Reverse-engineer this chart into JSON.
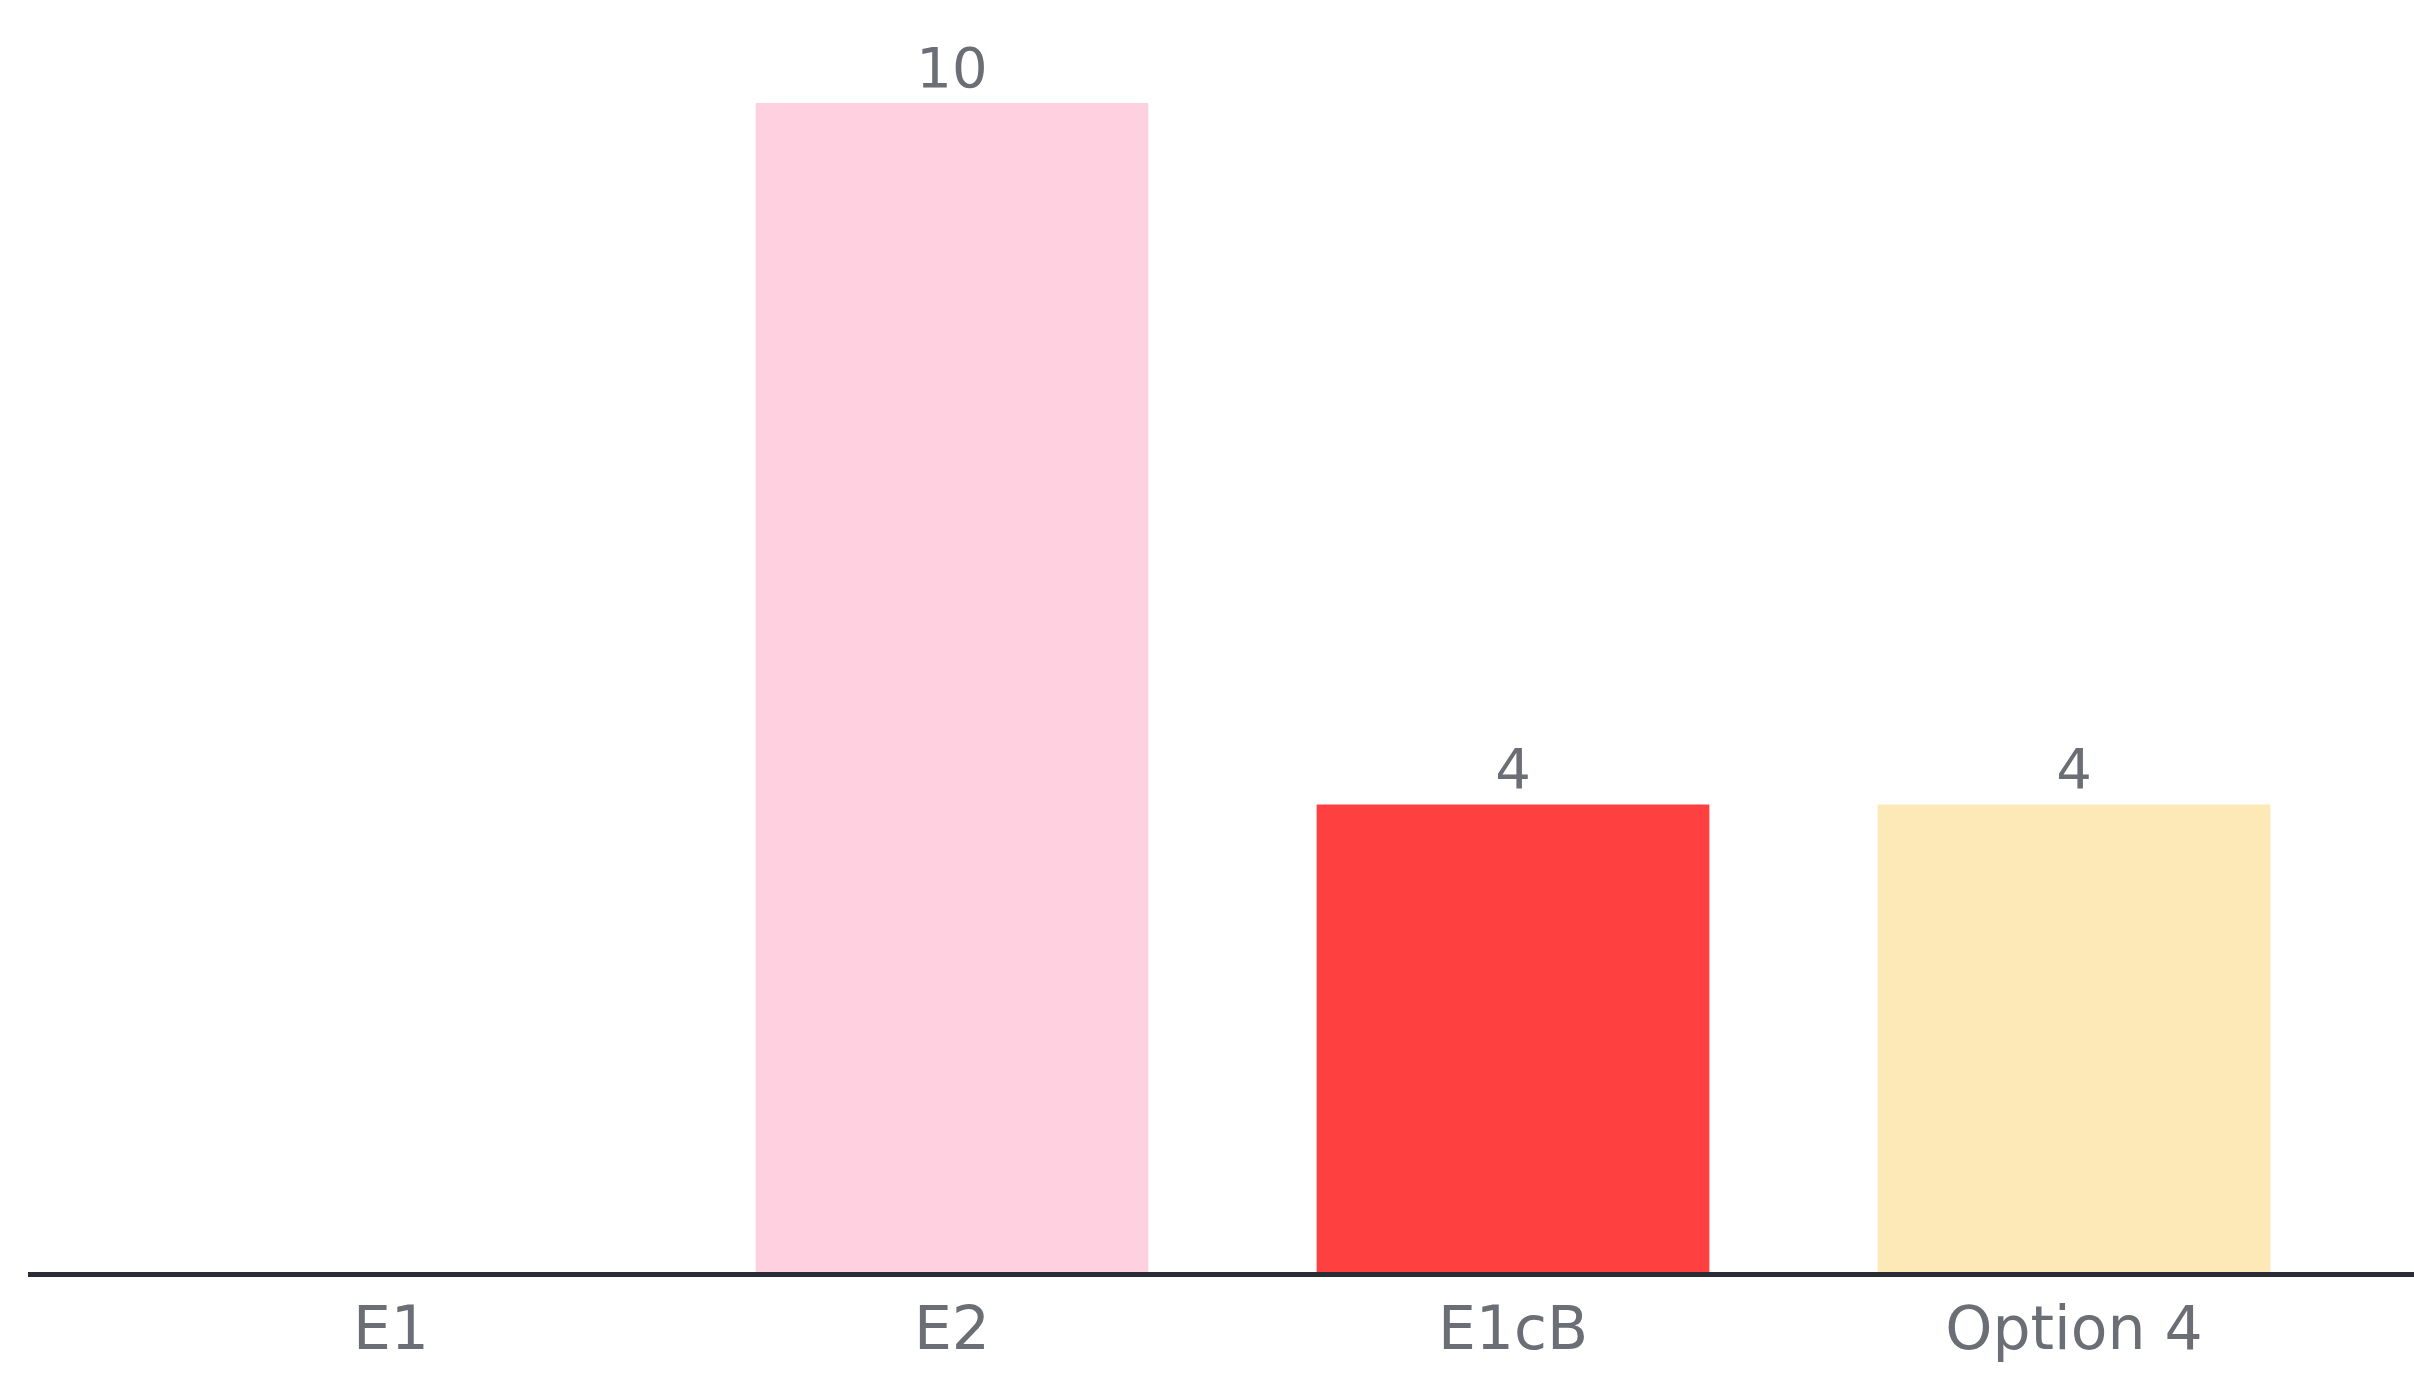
{
  "chart_data": {
    "type": "bar",
    "categories": [
      "E1",
      "E2",
      "E1cB",
      "Option 4"
    ],
    "values": [
      0,
      10,
      4,
      4
    ],
    "colors": [
      "#ffd1e0",
      "#ffd1e0",
      "#ff4040",
      "#fde8b8"
    ],
    "value_labels": [
      null,
      "10",
      "4",
      "4"
    ],
    "ylim": [
      0,
      10
    ]
  }
}
